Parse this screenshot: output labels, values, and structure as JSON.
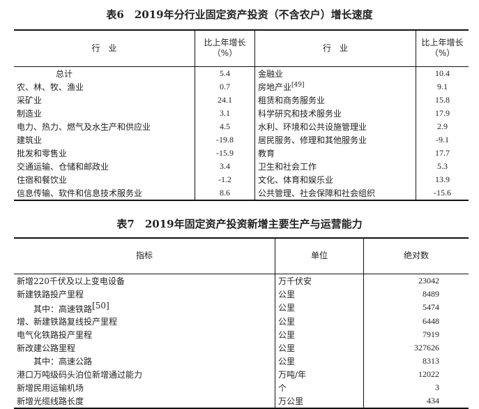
{
  "table6": {
    "title": "表6　2019年分行业固定资产投资（不含农户）增长速度",
    "headers": {
      "industry": "行　业",
      "growth_line1": "比上年增长",
      "growth_line2": "（%）"
    },
    "rows": [
      [
        "总计",
        "5.4",
        "金融业",
        "10.4"
      ],
      [
        "农、林、牧、渔业",
        "0.7",
        "房地产业",
        "9.1"
      ],
      [
        "采矿业",
        "24.1",
        "租赁和商务服务业",
        "15.8"
      ],
      [
        "制造业",
        "3.1",
        "科学研究和技术服务业",
        "17.9"
      ],
      [
        "电力、热力、燃气及水生产和供应业",
        "4.5",
        "水利、环境和公共设施管理业",
        "2.9"
      ],
      [
        "建筑业",
        "-19.8",
        "居民服务、修理和其他服务业",
        "-9.1"
      ],
      [
        "批发和零售业",
        "-15.9",
        "教育",
        "17.7"
      ],
      [
        "交通运输、仓储和邮政业",
        "3.4",
        "卫生和社会工作",
        "5.3"
      ],
      [
        "住宿和餐饮业",
        "-1.2",
        "文化、体育和娱乐业",
        "13.9"
      ],
      [
        "信息传输、软件和信息技术服务业",
        "8.6",
        "公共管理、社会保障和社会组织",
        "-15.6"
      ]
    ],
    "footnote_ref": "[49]"
  },
  "table7": {
    "title": "表7　2019年固定资产投资新增主要生产与运营能力",
    "headers": [
      "指标",
      "单位",
      "绝对数"
    ],
    "rows": [
      [
        "新增220千伏及以上变电设备",
        "万千伏安",
        "23042"
      ],
      [
        "新建铁路投产里程",
        "公里",
        "8489"
      ],
      [
        "其中：高速铁路",
        "公里",
        "5474"
      ],
      [
        "增、新建铁路复线投产里程",
        "公里",
        "6448"
      ],
      [
        "电气化铁路投产里程",
        "公里",
        "7919"
      ],
      [
        "新改建公路里程",
        "公里",
        "327626"
      ],
      [
        "其中：高速公路",
        "公里",
        "8313"
      ],
      [
        "港口万吨级码头泊位新增通过能力",
        "万吨/年",
        "12022"
      ],
      [
        "新增民用运输机场",
        "个",
        "3"
      ],
      [
        "新增光缆线路长度",
        "万公里",
        "434"
      ]
    ],
    "footnote_ref": "[50]"
  }
}
